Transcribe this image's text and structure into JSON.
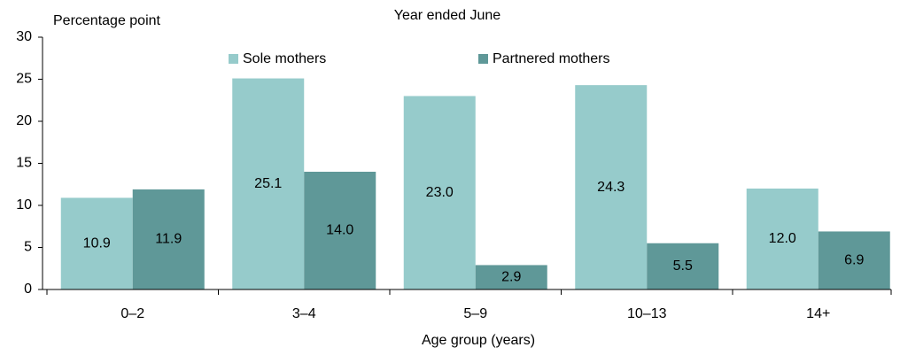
{
  "chart_data": {
    "type": "bar",
    "title": "Year ended June",
    "y_axis_label": "Percentage point",
    "x_axis_label": "Age group (years)",
    "categories": [
      "0–2",
      "3–4",
      "5–9",
      "10–13",
      "14+"
    ],
    "series": [
      {
        "name": "Sole mothers",
        "color": "#96cbcb",
        "values": [
          10.9,
          25.1,
          23.0,
          24.3,
          12.0
        ],
        "value_labels": [
          "10.9",
          "25.1",
          "23.0",
          "24.3",
          "12.0"
        ]
      },
      {
        "name": "Partnered mothers",
        "color": "#5f9898",
        "values": [
          11.9,
          14.0,
          2.9,
          5.5,
          6.9
        ],
        "value_labels": [
          "11.9",
          "14.0",
          "2.9",
          "5.5",
          "6.9"
        ]
      }
    ],
    "ylim": [
      0,
      30
    ],
    "yticks": [
      0,
      5,
      10,
      15,
      20,
      25,
      30
    ],
    "legend": "top"
  }
}
